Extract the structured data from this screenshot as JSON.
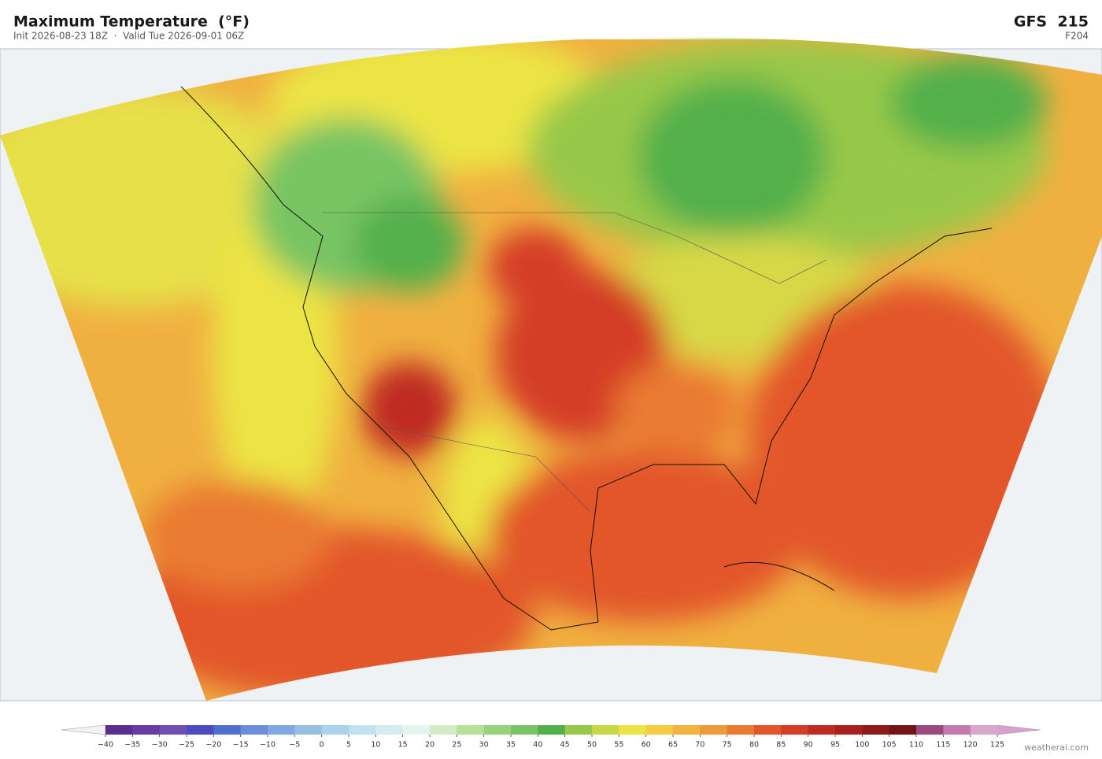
{
  "header": {
    "title": "Maximum Temperature  (°F)",
    "subtitle": "Init 2026-08-23 18Z  ·  Valid Tue 2026-09-01 06Z",
    "model": "GFS  215",
    "forecast_hour": "F204"
  },
  "colorbar": {
    "ticks": [
      {
        "value": -40,
        "label": "−40"
      },
      {
        "value": -35,
        "label": "−35"
      },
      {
        "value": -30,
        "label": "−30"
      },
      {
        "value": -25,
        "label": "−25"
      },
      {
        "value": -20,
        "label": "−20"
      },
      {
        "value": -15,
        "label": "−15"
      },
      {
        "value": -10,
        "label": "−10"
      },
      {
        "value": -5,
        "label": "−5"
      },
      0,
      5,
      10,
      15,
      20,
      25,
      30,
      35,
      40,
      45,
      50,
      55,
      60,
      65,
      70,
      75,
      80,
      85,
      90,
      95,
      100,
      105,
      110,
      115,
      120,
      125
    ],
    "colors": [
      "#5b2d8e",
      "#6a3aa0",
      "#6f4fb0",
      "#4a4cc0",
      "#4f6fd0",
      "#6a8fd8",
      "#7fa8e0",
      "#95c0e4",
      "#aad2ea",
      "#c0e2f0",
      "#d4ecf2",
      "#e4f4ee",
      "#d2ecc4",
      "#b8e09a",
      "#98d27a",
      "#78c464",
      "#52b04c",
      "#98c84a",
      "#c8d846",
      "#ece444",
      "#f4cc44",
      "#f2b440",
      "#ef9a3a",
      "#ea7a32",
      "#e2562a",
      "#d43c26",
      "#bf2a22",
      "#a8201e",
      "#8c1a1a",
      "#741414",
      "#9a4a7e",
      "#c27aae",
      "#d8a8cc"
    ],
    "under_color": "#f4f0f8",
    "over_color": "#d8a0cc"
  },
  "credit": "weatherai.com"
}
